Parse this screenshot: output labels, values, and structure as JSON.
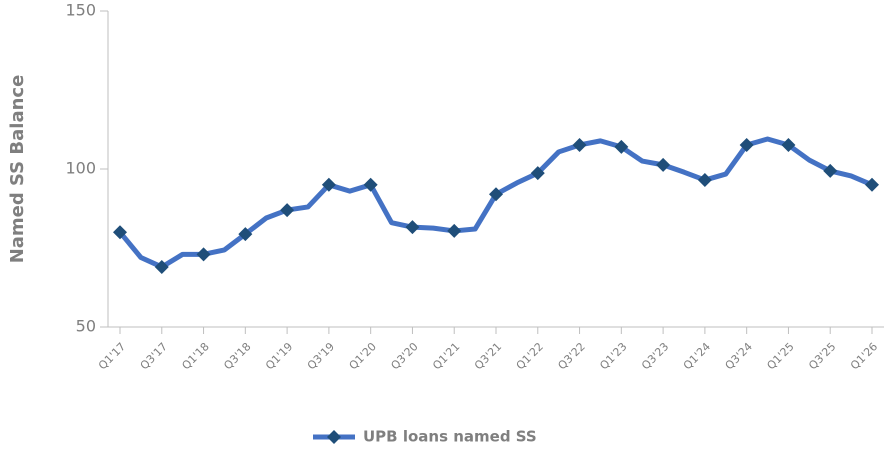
{
  "chart_data": {
    "type": "line",
    "y_label": "Named SS Balance",
    "categories": [
      "Q1'17",
      null,
      "Q3'17",
      null,
      "Q1'18",
      null,
      "Q3'18",
      null,
      "Q1'19",
      null,
      "Q3'19",
      null,
      "Q1'20",
      null,
      "Q3'20",
      null,
      "Q1'21",
      null,
      "Q3'21",
      null,
      "Q1'22",
      null,
      "Q3'22",
      null,
      "Q1'23",
      null,
      "Q3'23",
      null,
      "Q1'24",
      null,
      "Q3'24",
      null,
      "Q1'25",
      null,
      "Q3'25",
      null,
      "Q1'26"
    ],
    "series": [
      {
        "name": "UPB loans named SS",
        "color": "#4472c4",
        "marker_color": "#1f4e79",
        "values": [
          80,
          72,
          69,
          73,
          73,
          74.4,
          79.4,
          84.5,
          87,
          88,
          95,
          93,
          95,
          83,
          81.6,
          81.3,
          80.4,
          81,
          92,
          95.6,
          98.7,
          105.4,
          107.6,
          108.9,
          107,
          102.5,
          101.3,
          99,
          96.5,
          98.4,
          107.6,
          109.5,
          107.6,
          102.8,
          99.4,
          97.8,
          95
        ]
      }
    ],
    "ylim": [
      50,
      150
    ],
    "yticks": [
      50,
      100,
      150
    ],
    "legend": "bottom"
  }
}
